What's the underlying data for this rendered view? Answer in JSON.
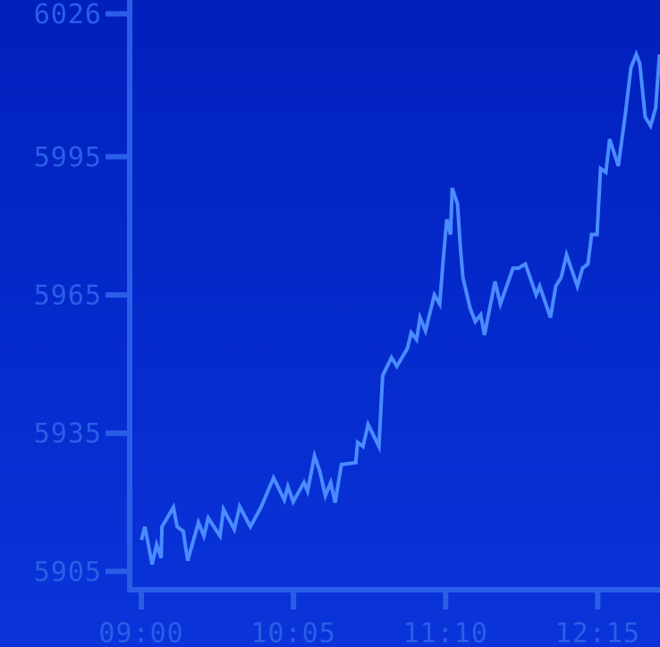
{
  "chart_data": {
    "type": "line",
    "x": [
      540,
      541.5,
      544.6,
      546.5,
      548.4,
      548.8,
      553.7,
      555.3,
      557.9,
      559.8,
      564.4,
      566.7,
      568.6,
      573.6,
      575.1,
      579.7,
      582.0,
      586.6,
      591.1,
      596.5,
      601.1,
      602.6,
      604.9,
      609.5,
      611.0,
      614.0,
      616.3,
      618.6,
      620.9,
      622.8,
      625.5,
      631.6,
      632.4,
      634.7,
      636.9,
      641.5,
      643.1,
      646.9,
      649.2,
      653.7,
      655.3,
      657.6,
      659.1,
      661.4,
      665.2,
      667.5,
      669.0,
      670.5,
      672.1,
      672.8,
      675.1,
      676.3,
      677.4,
      680.5,
      682.7,
      685.0,
      686.6,
      691.1,
      693.4,
      698.8,
      701.1,
      704.1,
      708.7,
      710.2,
      714.8,
      717.1,
      719.4,
      721.7,
      726.3,
      728.5,
      730.8,
      732.4,
      734.7,
      736.2,
      738.5,
      740.1,
      743.8,
      746.9,
      749.2,
      751.5,
      753.0,
      755.3,
      757.6,
      759.8,
      761.4
    ],
    "series": [
      {
        "color": "#4a8cff",
        "values": [
          5911.8,
          5914.7,
          5906.5,
          5910.8,
          5907.9,
          5914.7,
          5918.9,
          5914.7,
          5913.7,
          5907.3,
          5915.6,
          5912.7,
          5916.6,
          5912.7,
          5918.5,
          5914.1,
          5919.1,
          5914.7,
          5918.9,
          5925.3,
          5920.5,
          5923.4,
          5920.1,
          5924.3,
          5922.4,
          5930.1,
          5926.7,
          5921.4,
          5924.3,
          5919.9,
          5928.2,
          5928.6,
          5933.0,
          5932.1,
          5936.9,
          5932.1,
          5947.5,
          5951.4,
          5949.5,
          5953.4,
          5956.8,
          5955.3,
          5960.1,
          5957.2,
          5965.0,
          5963.0,
          5972.7,
          5981.4,
          5978.1,
          5988.2,
          5984.7,
          5975.6,
          5968.8,
          5962.1,
          5959.2,
          5960.7,
          5956.3,
          5967.9,
          5963.0,
          5970.8,
          5970.8,
          5971.7,
          5965.0,
          5966.9,
          5960.1,
          5966.9,
          5968.8,
          5973.7,
          5966.9,
          5970.8,
          5971.7,
          5978.1,
          5978.1,
          5992.4,
          5991.6,
          5998.8,
          5993.0,
          6004.6,
          6014.3,
          6017.2,
          6015.2,
          6003.6,
          6001.7,
          6005.6,
          6017.2
        ]
      }
    ],
    "xlim": [
      535,
      762
    ],
    "xticks": [
      {
        "value": 540,
        "label": "09:00"
      },
      {
        "value": 605,
        "label": "10:05"
      },
      {
        "value": 670,
        "label": "11:10"
      },
      {
        "value": 735,
        "label": "12:15"
      }
    ],
    "ylim": [
      5901,
      6029
    ],
    "yticks": [
      5905,
      5935,
      5965,
      5995,
      6026
    ]
  }
}
